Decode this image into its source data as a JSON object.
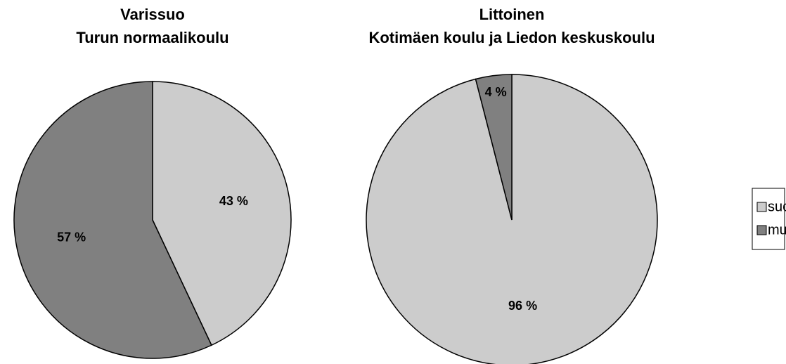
{
  "chart_data": [
    {
      "type": "pie",
      "title": [
        "Varissuo",
        "Turun normaalikoulu"
      ],
      "categories": [
        "suomi",
        "muut"
      ],
      "values": [
        43,
        57
      ],
      "value_labels": [
        "43 %",
        "57 %"
      ],
      "colors": [
        "#cccccc",
        "#808080"
      ]
    },
    {
      "type": "pie",
      "title": [
        "Littoinen",
        "Kotimäen koulu ja Liedon keskuskoulu"
      ],
      "categories": [
        "suomi",
        "muut"
      ],
      "values": [
        96,
        4
      ],
      "value_labels": [
        "96 %",
        "4 %"
      ],
      "colors": [
        "#cccccc",
        "#808080"
      ],
      "legend": "right"
    }
  ]
}
